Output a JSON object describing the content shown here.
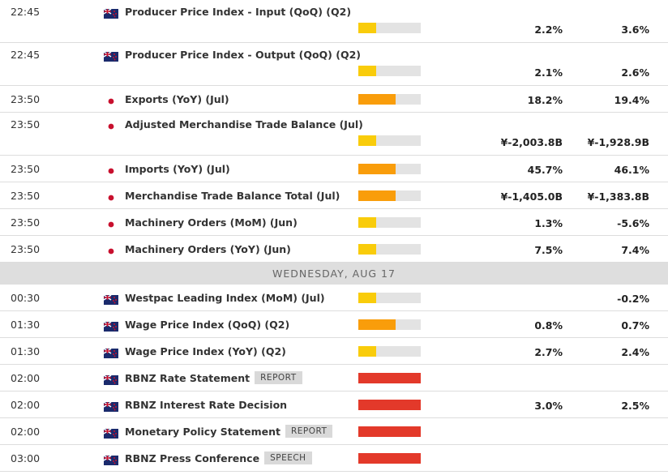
{
  "rows": [
    {
      "time": "22:45",
      "country": "nz",
      "event": "Producer Price Index - Input (QoQ) (Q2)",
      "impact": "low",
      "actual": "2.2%",
      "previous": "3.6%"
    },
    {
      "time": "22:45",
      "country": "nz",
      "event": "Producer Price Index - Output (QoQ) (Q2)",
      "impact": "low",
      "actual": "2.1%",
      "previous": "2.6%"
    },
    {
      "time": "23:50",
      "country": "jp",
      "event": "Exports (YoY) (Jul)",
      "impact": "medium",
      "actual": "18.2%",
      "previous": "19.4%"
    },
    {
      "time": "23:50",
      "country": "jp",
      "event": "Adjusted Merchandise Trade Balance (Jul)",
      "impact": "low",
      "actual": "¥-2,003.8B",
      "previous": "¥-1,928.9B"
    },
    {
      "time": "23:50",
      "country": "jp",
      "event": "Imports (YoY) (Jul)",
      "impact": "medium",
      "actual": "45.7%",
      "previous": "46.1%"
    },
    {
      "time": "23:50",
      "country": "jp",
      "event": "Merchandise Trade Balance Total (Jul)",
      "impact": "medium",
      "actual": "¥-1,405.0B",
      "previous": "¥-1,383.8B"
    },
    {
      "time": "23:50",
      "country": "jp",
      "event": "Machinery Orders (MoM) (Jun)",
      "impact": "low",
      "actual": "1.3%",
      "previous": "-5.6%"
    },
    {
      "time": "23:50",
      "country": "jp",
      "event": "Machinery Orders (YoY) (Jun)",
      "impact": "low",
      "actual": "7.5%",
      "previous": "7.4%"
    },
    {
      "date": "WEDNESDAY, AUG 17"
    },
    {
      "time": "00:30",
      "country": "nz",
      "event": "Westpac Leading Index (MoM) (Jul)",
      "impact": "low",
      "previous": "-0.2%"
    },
    {
      "time": "01:30",
      "country": "nz",
      "event": "Wage Price Index (QoQ) (Q2)",
      "impact": "medium",
      "actual": "0.8%",
      "previous": "0.7%"
    },
    {
      "time": "01:30",
      "country": "nz",
      "event": "Wage Price Index (YoY) (Q2)",
      "impact": "low",
      "actual": "2.7%",
      "previous": "2.4%"
    },
    {
      "time": "02:00",
      "country": "nz",
      "event": "RBNZ Rate Statement",
      "tag": "REPORT",
      "impact": "high"
    },
    {
      "time": "02:00",
      "country": "nz",
      "event": "RBNZ Interest Rate Decision",
      "impact": "high",
      "actual": "3.0%",
      "previous": "2.5%"
    },
    {
      "time": "02:00",
      "country": "nz",
      "event": "Monetary Policy Statement",
      "tag": "REPORT",
      "impact": "high"
    },
    {
      "time": "03:00",
      "country": "nz",
      "event": "RBNZ Press Conference",
      "tag": "SPEECH",
      "impact": "high"
    }
  ]
}
